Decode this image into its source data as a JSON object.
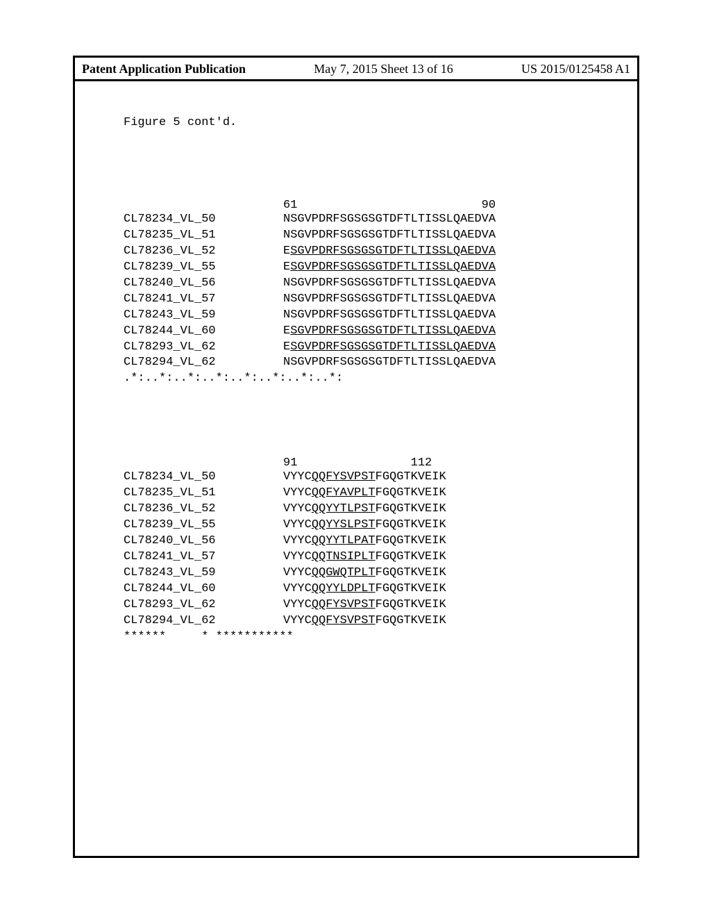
{
  "header": {
    "left": "Patent Application Publication",
    "mid": "May 7, 2015   Sheet 13 of 16",
    "right": "US 2015/0125458 A1"
  },
  "figure_caption": "Figure 5 cont'd.",
  "block1": {
    "ruler_start": "61",
    "ruler_end": "90",
    "rows": [
      {
        "label": "CL78234_VL_50",
        "seq": "NSGVPDRFSGSGSGTDFTLTISSLQAEDVA"
      },
      {
        "label": "CL78235_VL_51",
        "seq": "NSGVPDRFSGSGSGTDFTLTISSLQAEDVA"
      },
      {
        "label": "CL78236_VL_52",
        "pre": "E",
        "und": "SGVPDRFSGSGSGTDFTLTISSLQAEDVA"
      },
      {
        "label": "CL78239_VL_55",
        "pre": "E",
        "und": "SGVPDRFSGSGSGTDFTLTISSLQAEDVA"
      },
      {
        "label": "CL78240_VL_56",
        "seq": "NSGVPDRFSGSGSGTDFTLTISSLQAEDVA"
      },
      {
        "label": "CL78241_VL_57",
        "seq": "NSGVPDRFSGSGSGTDFTLTISSLQAEDVA"
      },
      {
        "label": "CL78243_VL_59",
        "seq": "NSGVPDRFSGSGSGTDFTLTISSLQAEDVA"
      },
      {
        "label": "CL78244_VL_60",
        "pre": "E",
        "und": "SGVPDRFSGSGSGTDFTLTISSLQAEDVA"
      },
      {
        "label": "CL78293_VL_62",
        "pre": "E",
        "und": "SGVPDRFSGSGSGTDFTLTISSLQAEDVA"
      },
      {
        "label": "CL78294_VL_62",
        "seq": "NSGVPDRFSGSGSGTDFTLTISSLQAEDVA"
      }
    ],
    "consensus": ".*:..*:..*:..*:..*:..*:..*:..*:"
  },
  "block2": {
    "ruler_start": "91",
    "ruler_end": "112",
    "rows": [
      {
        "label": "CL78234_VL_50",
        "pre": "VYYC",
        "und": "QQFYSVPST",
        "post": "FGQGTKVEIK"
      },
      {
        "label": "CL78235_VL_51",
        "pre": "VYYC",
        "und": "QQFYAVPLT",
        "post": "FGQGTKVEIK"
      },
      {
        "label": "CL78236_VL_52",
        "pre": "VYYC",
        "und": "QQYYTLPST",
        "post": "FGQGTKVEIK"
      },
      {
        "label": "CL78239_VL_55",
        "pre": "VYYC",
        "und": "QQYYSLPST",
        "post": "FGQGTKVEIK"
      },
      {
        "label": "CL78240_VL_56",
        "pre": "VYYC",
        "und": "QQYYTLPAT",
        "post": "FGQGTKVEIK"
      },
      {
        "label": "CL78241_VL_57",
        "pre": "VYYC",
        "und": "QQTNSIPLT",
        "post": "FGQGTKVEIK"
      },
      {
        "label": "CL78243_VL_59",
        "pre": "VYYC",
        "und": "QQGWQTPLT",
        "post": "FGQGTKVEIK"
      },
      {
        "label": "CL78244_VL_60",
        "pre": "VYYC",
        "und": "QQYYLDPLT",
        "post": "FGQGTKVEIK"
      },
      {
        "label": "CL78293_VL_62",
        "pre": "VYYC",
        "und": "QQFYSVPST",
        "post": "FGQGTKVEIK"
      },
      {
        "label": "CL78294_VL_62",
        "pre": "VYYC",
        "und": "QQFYSVPST",
        "post": "FGQGTKVEIK"
      }
    ],
    "consensus": "******     * ***********"
  }
}
